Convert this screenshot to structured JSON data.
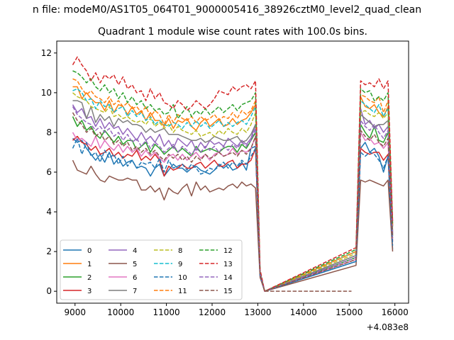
{
  "figure": {
    "suptitle": "n file: modeM0/AS1T05_064T01_9000005416_38926cztM0_level2_quad_clean",
    "x_offset_label": "+4.083e8"
  },
  "chart_data": {
    "type": "line",
    "title": "Quadrant 1 module wise count rates with 100.0s bins.",
    "xlabel": "",
    "ylabel": "",
    "x_offset": 408300000,
    "xlim": [
      8600,
      16300
    ],
    "ylim": [
      -0.6,
      12.6
    ],
    "xticks": [
      9000,
      10000,
      11000,
      12000,
      13000,
      14000,
      15000,
      16000
    ],
    "yticks": [
      0,
      2,
      4,
      6,
      8,
      10,
      12
    ],
    "grid": false,
    "legend": {
      "placement": "lower-left",
      "columns": 4
    },
    "x": [
      8950,
      9050,
      9150,
      9250,
      9350,
      9450,
      9550,
      9650,
      9750,
      9850,
      9950,
      10050,
      10150,
      10250,
      10350,
      10450,
      10550,
      10650,
      10750,
      10850,
      10950,
      11050,
      11150,
      11250,
      11350,
      11450,
      11550,
      11650,
      11750,
      11850,
      11950,
      12050,
      12150,
      12250,
      12350,
      12450,
      12550,
      12650,
      12750,
      12850,
      12950,
      13050,
      13150,
      15150,
      15250,
      15350,
      15450,
      15550,
      15650,
      15750,
      15850,
      15950
    ],
    "gap_segment": {
      "x": [
        13150,
        15050
      ],
      "y": 0
    },
    "series": [
      {
        "name": "0",
        "color": "#1f77b4",
        "dash": "solid",
        "values": [
          7.7,
          7.5,
          7.6,
          7.2,
          6.9,
          6.6,
          6.9,
          6.5,
          7.0,
          6.4,
          6.7,
          6.3,
          6.5,
          6.6,
          6.2,
          6.3,
          6.2,
          5.8,
          6.2,
          6.4,
          5.8,
          6.1,
          6.4,
          6.2,
          6.2,
          6.0,
          6.2,
          6.3,
          6.1,
          6.0,
          5.9,
          6.1,
          6.4,
          6.2,
          6.4,
          6.1,
          6.2,
          6.5,
          6.1,
          7.2,
          7.3,
          0.8,
          0.0,
          1.5,
          7.2,
          7.5,
          7.0,
          7.2,
          6.8,
          6.0,
          6.8,
          2.1
        ]
      },
      {
        "name": "1",
        "color": "#ff7f0e",
        "dash": "solid",
        "values": [
          10.3,
          10.3,
          9.7,
          10.0,
          9.7,
          9.5,
          9.5,
          9.1,
          9.6,
          9.0,
          9.4,
          9.3,
          8.9,
          9.3,
          8.9,
          9.1,
          8.6,
          9.0,
          8.6,
          8.6,
          8.3,
          8.7,
          8.2,
          8.6,
          8.5,
          8.7,
          8.3,
          8.1,
          8.5,
          8.7,
          8.3,
          8.5,
          8.7,
          8.3,
          8.4,
          8.7,
          8.4,
          8.6,
          8.7,
          9.0,
          9.4,
          0.9,
          0.0,
          2.0,
          9.8,
          9.3,
          9.2,
          9.4,
          9.0,
          8.8,
          9.3,
          3.3
        ]
      },
      {
        "name": "2",
        "color": "#2ca02c",
        "dash": "solid",
        "values": [
          8.8,
          8.3,
          8.6,
          8.1,
          8.3,
          7.9,
          7.7,
          8.1,
          7.8,
          7.5,
          7.8,
          7.4,
          7.6,
          7.6,
          7.1,
          7.3,
          7.5,
          7.0,
          7.4,
          7.2,
          6.9,
          7.1,
          7.3,
          7.0,
          7.2,
          7.0,
          6.8,
          7.3,
          7.0,
          7.1,
          7.2,
          7.1,
          7.0,
          7.2,
          7.3,
          7.3,
          7.0,
          7.4,
          7.2,
          7.6,
          8.0,
          0.9,
          0.0,
          1.7,
          8.4,
          8.0,
          7.7,
          8.3,
          7.6,
          7.5,
          8.0,
          2.8
        ]
      },
      {
        "name": "3",
        "color": "#d62728",
        "dash": "solid",
        "values": [
          7.6,
          7.8,
          7.5,
          7.4,
          7.1,
          7.3,
          6.9,
          7.0,
          7.2,
          6.8,
          7.0,
          6.7,
          6.9,
          6.8,
          7.1,
          6.6,
          6.8,
          6.6,
          6.9,
          6.6,
          5.8,
          6.3,
          6.1,
          6.2,
          6.4,
          6.2,
          6.2,
          6.4,
          6.5,
          6.2,
          6.4,
          6.6,
          6.3,
          6.3,
          6.5,
          6.6,
          6.2,
          6.4,
          6.4,
          6.6,
          7.2,
          0.8,
          0.0,
          1.6,
          7.2,
          7.0,
          6.9,
          7.0,
          7.0,
          6.6,
          6.9,
          2.5
        ]
      },
      {
        "name": "4",
        "color": "#9467bd",
        "dash": "solid",
        "values": [
          9.4,
          9.0,
          9.2,
          8.7,
          8.8,
          8.3,
          8.7,
          8.2,
          8.5,
          8.2,
          8.3,
          7.9,
          8.2,
          7.9,
          7.6,
          8.0,
          7.6,
          7.8,
          7.5,
          7.9,
          7.3,
          7.6,
          7.2,
          7.7,
          7.5,
          7.3,
          7.6,
          7.1,
          7.5,
          7.2,
          7.6,
          7.4,
          7.5,
          7.3,
          7.7,
          7.5,
          7.3,
          7.6,
          7.4,
          7.7,
          8.4,
          0.9,
          0.0,
          1.8,
          9.2,
          8.4,
          8.6,
          8.2,
          8.4,
          8.0,
          8.3,
          2.9
        ]
      },
      {
        "name": "5",
        "color": "#8c564b",
        "dash": "solid",
        "values": [
          6.6,
          6.1,
          6.0,
          5.9,
          6.3,
          5.9,
          5.6,
          5.5,
          5.8,
          5.7,
          5.6,
          5.6,
          5.7,
          5.6,
          5.6,
          5.1,
          5.1,
          5.3,
          5.0,
          5.2,
          4.6,
          5.2,
          5.0,
          4.9,
          5.2,
          5.4,
          4.8,
          5.5,
          5.1,
          5.3,
          5.0,
          5.1,
          5.2,
          5.1,
          5.3,
          5.4,
          5.2,
          5.5,
          5.3,
          5.4,
          5.2,
          0.7,
          0.0,
          1.3,
          5.6,
          5.5,
          5.6,
          5.5,
          5.4,
          5.3,
          5.6,
          2.0
        ]
      },
      {
        "name": "6",
        "color": "#e377c2",
        "dash": "solid",
        "values": [
          8.0,
          7.6,
          7.7,
          7.5,
          7.3,
          7.8,
          7.2,
          7.6,
          7.3,
          7.1,
          7.4,
          7.0,
          7.3,
          7.0,
          7.2,
          6.8,
          7.1,
          6.8,
          7.0,
          6.7,
          6.5,
          6.8,
          6.9,
          6.6,
          6.9,
          6.6,
          6.8,
          7.0,
          6.7,
          6.9,
          6.6,
          6.9,
          7.0,
          6.8,
          6.9,
          7.2,
          6.9,
          7.1,
          7.0,
          7.2,
          7.8,
          0.8,
          0.0,
          1.6,
          8.0,
          7.6,
          7.7,
          7.4,
          7.5,
          7.2,
          7.5,
          2.6
        ]
      },
      {
        "name": "7",
        "color": "#7f7f7f",
        "dash": "solid",
        "values": [
          9.6,
          9.6,
          9.5,
          8.7,
          9.3,
          8.5,
          8.9,
          8.6,
          8.8,
          8.3,
          8.7,
          8.5,
          8.6,
          8.4,
          8.4,
          8.3,
          8.0,
          8.2,
          8.0,
          8.1,
          8.2,
          7.9,
          7.9,
          7.9,
          7.8,
          7.7,
          7.6,
          7.6,
          7.7,
          7.5,
          7.6,
          7.8,
          7.7,
          7.6,
          7.6,
          7.7,
          7.8,
          7.5,
          7.6,
          7.9,
          8.4,
          0.9,
          0.0,
          1.8,
          8.9,
          8.7,
          8.5,
          8.3,
          8.4,
          8.4,
          8.6,
          3.0
        ]
      },
      {
        "name": "8",
        "color": "#bcbd22",
        "dash": "dashed",
        "values": [
          10.0,
          9.8,
          9.7,
          9.6,
          9.3,
          9.2,
          9.1,
          9.0,
          9.3,
          8.8,
          8.9,
          8.7,
          8.8,
          8.6,
          8.5,
          8.6,
          8.4,
          8.7,
          8.3,
          8.5,
          8.2,
          8.4,
          8.0,
          8.3,
          8.1,
          8.0,
          7.9,
          8.1,
          7.8,
          7.9,
          8.0,
          7.8,
          8.1,
          7.9,
          8.2,
          8.0,
          7.9,
          8.2,
          8.0,
          8.4,
          9.0,
          0.9,
          0.0,
          1.9,
          9.0,
          9.1,
          8.9,
          8.8,
          9.0,
          8.7,
          9.0,
          3.1
        ]
      },
      {
        "name": "9",
        "color": "#17becf",
        "dash": "dashed",
        "values": [
          10.1,
          10.2,
          10.0,
          9.6,
          9.7,
          9.2,
          9.6,
          9.3,
          9.4,
          9.0,
          9.2,
          9.3,
          8.8,
          9.1,
          8.8,
          9.0,
          8.6,
          8.8,
          8.4,
          8.6,
          8.4,
          8.3,
          8.5,
          8.4,
          8.2,
          8.5,
          8.3,
          8.6,
          8.3,
          8.5,
          8.2,
          8.4,
          8.6,
          8.3,
          8.5,
          8.3,
          8.5,
          8.6,
          8.4,
          8.8,
          9.3,
          0.9,
          0.0,
          2.0,
          9.6,
          9.4,
          9.2,
          9.0,
          9.4,
          8.8,
          9.2,
          3.2
        ]
      },
      {
        "name": "10",
        "color": "#1f77b4",
        "dash": "dashed",
        "values": [
          7.2,
          7.7,
          6.9,
          7.5,
          6.8,
          7.0,
          6.5,
          7.1,
          6.7,
          6.9,
          6.4,
          6.8,
          6.3,
          6.6,
          6.2,
          6.5,
          6.4,
          6.5,
          6.2,
          6.7,
          6.0,
          6.6,
          6.2,
          6.3,
          6.4,
          6.1,
          6.4,
          6.2,
          5.9,
          6.0,
          6.2,
          6.1,
          6.3,
          6.5,
          6.2,
          6.5,
          6.3,
          6.6,
          6.4,
          6.8,
          7.2,
          0.8,
          0.0,
          1.5,
          7.0,
          6.8,
          7.0,
          6.9,
          6.6,
          6.2,
          6.8,
          2.3
        ]
      },
      {
        "name": "11",
        "color": "#ff7f0e",
        "dash": "dashed",
        "values": [
          10.7,
          10.6,
          10.2,
          9.9,
          10.1,
          9.8,
          9.7,
          9.5,
          9.8,
          9.4,
          9.6,
          9.3,
          9.5,
          9.2,
          9.3,
          9.0,
          9.3,
          8.8,
          9.1,
          8.9,
          8.4,
          8.9,
          8.5,
          8.9,
          8.7,
          8.6,
          8.8,
          8.5,
          8.8,
          8.6,
          8.7,
          8.9,
          8.6,
          8.8,
          8.7,
          9.0,
          8.7,
          9.1,
          8.9,
          9.1,
          9.6,
          0.9,
          0.0,
          2.0,
          9.9,
          9.8,
          9.6,
          9.5,
          9.8,
          9.0,
          9.6,
          3.3
        ]
      },
      {
        "name": "12",
        "color": "#2ca02c",
        "dash": "dashed",
        "values": [
          11.1,
          11.0,
          10.8,
          10.5,
          10.7,
          10.3,
          10.1,
          10.4,
          10.0,
          10.2,
          9.7,
          10.0,
          9.5,
          9.8,
          9.4,
          9.6,
          9.2,
          9.4,
          9.1,
          9.2,
          8.9,
          9.0,
          9.4,
          8.7,
          9.0,
          9.3,
          8.8,
          9.1,
          8.9,
          9.2,
          8.9,
          9.1,
          9.3,
          9.0,
          9.2,
          9.4,
          9.1,
          9.4,
          9.5,
          9.6,
          10.0,
          1.0,
          0.0,
          2.1,
          10.2,
          10.0,
          10.1,
          9.6,
          9.8,
          9.6,
          10.0,
          3.4
        ]
      },
      {
        "name": "13",
        "color": "#d62728",
        "dash": "dashed",
        "values": [
          11.4,
          11.8,
          11.4,
          11.1,
          10.6,
          11.0,
          10.5,
          10.9,
          10.7,
          10.9,
          10.4,
          10.8,
          10.2,
          10.4,
          10.0,
          10.1,
          9.6,
          10.2,
          9.7,
          10.0,
          9.5,
          9.4,
          9.2,
          9.6,
          9.4,
          9.1,
          9.3,
          9.6,
          9.4,
          9.2,
          9.4,
          9.7,
          10.1,
          10.0,
          9.9,
          10.3,
          10.1,
          10.3,
          10.4,
          10.2,
          10.6,
          1.1,
          0.0,
          2.2,
          10.6,
          10.4,
          10.5,
          10.3,
          10.7,
          10.2,
          10.6,
          3.5
        ]
      },
      {
        "name": "14",
        "color": "#9467bd",
        "dash": "dashed",
        "values": [
          9.3,
          8.9,
          8.7,
          8.5,
          8.4,
          8.1,
          8.3,
          8.0,
          8.2,
          7.8,
          8.0,
          7.6,
          7.9,
          7.5,
          7.7,
          7.3,
          7.6,
          7.2,
          7.5,
          7.3,
          7.0,
          7.2,
          7.4,
          7.0,
          7.3,
          7.1,
          6.9,
          7.2,
          7.0,
          7.3,
          7.1,
          7.3,
          7.0,
          7.3,
          7.1,
          7.4,
          7.2,
          7.5,
          7.3,
          7.6,
          8.2,
          0.9,
          0.0,
          1.7,
          8.6,
          8.3,
          8.1,
          8.4,
          8.0,
          7.7,
          8.1,
          2.8
        ]
      },
      {
        "name": "15",
        "color": "#8c564b",
        "dash": "dashed",
        "values": [
          9.0,
          8.6,
          8.4,
          8.0,
          8.2,
          7.8,
          8.0,
          7.6,
          7.8,
          7.4,
          7.6,
          7.3,
          7.5,
          7.1,
          7.3,
          7.0,
          7.2,
          6.9,
          7.1,
          6.8,
          6.6,
          6.9,
          6.7,
          6.9,
          6.6,
          6.8,
          6.5,
          6.8,
          6.6,
          6.9,
          6.7,
          6.8,
          7.0,
          6.8,
          6.9,
          7.0,
          6.8,
          7.1,
          6.9,
          7.2,
          7.8,
          0.8,
          0.0,
          1.6,
          8.1,
          7.8,
          7.6,
          7.9,
          7.5,
          7.3,
          7.7,
          2.7
        ]
      }
    ]
  }
}
